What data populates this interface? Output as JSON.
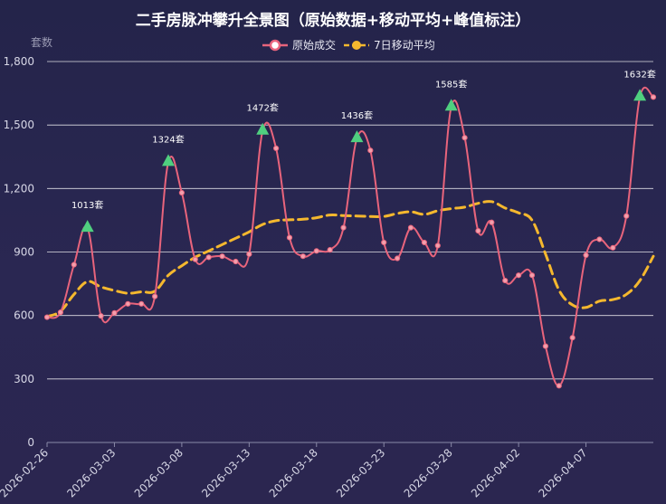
{
  "chart_data": {
    "type": "line",
    "title": "二手房脉冲攀升全景图（原始数据+移动平均+峰值标注）",
    "ylabel": "套数",
    "ylim": [
      0,
      1800
    ],
    "yticks": [
      "0",
      "300",
      "600",
      "900",
      "1,200",
      "1,500",
      "1,800"
    ],
    "ytick_values": [
      0,
      300,
      600,
      900,
      1200,
      1500,
      1800
    ],
    "grid": true,
    "legend_position": "top-center",
    "x": [
      "2026-02-26",
      "2026-02-27",
      "2026-02-28",
      "2026-03-01",
      "2026-03-02",
      "2026-03-03",
      "2026-03-04",
      "2026-03-05",
      "2026-03-06",
      "2026-03-07",
      "2026-03-08",
      "2026-03-09",
      "2026-03-10",
      "2026-03-11",
      "2026-03-12",
      "2026-03-13",
      "2026-03-14",
      "2026-03-15",
      "2026-03-16",
      "2026-03-17",
      "2026-03-18",
      "2026-03-19",
      "2026-03-20",
      "2026-03-21",
      "2026-03-22",
      "2026-03-23",
      "2026-03-24",
      "2026-03-25",
      "2026-03-26",
      "2026-03-27",
      "2026-03-28",
      "2026-03-29",
      "2026-03-30",
      "2026-03-31",
      "2026-04-01",
      "2026-04-02",
      "2026-04-03",
      "2026-04-04",
      "2026-04-05",
      "2026-04-06",
      "2026-04-07",
      "2026-04-08",
      "2026-04-09",
      "2026-04-10",
      "2026-04-11",
      "2026-04-12"
    ],
    "xtick_labels": [
      "2026-02-26",
      "2026-03-03",
      "2026-03-08",
      "2026-03-13",
      "2026-03-18",
      "2026-03-23",
      "2026-03-28",
      "2026-04-02",
      "2026-04-07"
    ],
    "series": [
      {
        "name": "原始成交",
        "color": "#e8647c",
        "values": [
          592,
          615,
          840,
          1013,
          598,
          612,
          655,
          655,
          690,
          1324,
          1180,
          865,
          875,
          880,
          855,
          890,
          1472,
          1390,
          968,
          880,
          905,
          910,
          1015,
          1436,
          1380,
          945,
          870,
          1015,
          945,
          930,
          1585,
          1440,
          1000,
          1040,
          765,
          790,
          790,
          455,
          268,
          495,
          885,
          960,
          920,
          1070,
          1632,
          1632
        ]
      },
      {
        "name": "7日移动平均",
        "color": "#f5b82e",
        "values": [
          595,
          620,
          700,
          760,
          735,
          718,
          705,
          712,
          715,
          790,
          835,
          875,
          905,
          935,
          965,
          995,
          1030,
          1048,
          1052,
          1055,
          1062,
          1075,
          1072,
          1070,
          1068,
          1068,
          1082,
          1090,
          1078,
          1095,
          1105,
          1112,
          1130,
          1138,
          1108,
          1085,
          1050,
          890,
          720,
          650,
          638,
          668,
          675,
          700,
          765,
          880
        ]
      }
    ],
    "peaks": [
      {
        "x": "2026-03-01",
        "value": 1013,
        "label": "1013套"
      },
      {
        "x": "2026-03-07",
        "value": 1324,
        "label": "1324套"
      },
      {
        "x": "2026-03-14",
        "value": 1472,
        "label": "1472套"
      },
      {
        "x": "2026-03-21",
        "value": 1436,
        "label": "1436套"
      },
      {
        "x": "2026-03-28",
        "value": 1585,
        "label": "1585套"
      },
      {
        "x": "2026-04-11",
        "value": 1632,
        "label": "1632套"
      }
    ],
    "peak_marker_color": "#4fcf7f"
  }
}
